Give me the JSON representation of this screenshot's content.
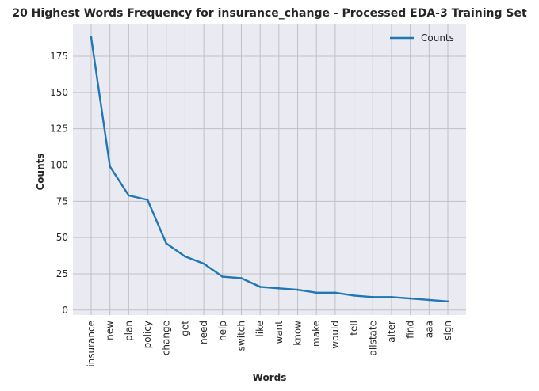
{
  "chart_data": {
    "type": "line",
    "title": "20 Highest Words Frequency for insurance_change - Processed EDA-3 Training Set",
    "xlabel": "Words",
    "ylabel": "Counts",
    "categories": [
      "insurance",
      "new",
      "plan",
      "policy",
      "change",
      "get",
      "need",
      "help",
      "switch",
      "like",
      "want",
      "know",
      "make",
      "would",
      "tell",
      "allstate",
      "alter",
      "find",
      "aaa",
      "sign"
    ],
    "series": [
      {
        "name": "Counts",
        "values": [
          188,
          99,
          79,
          76,
          46,
          37,
          32,
          23,
          22,
          16,
          15,
          14,
          12,
          12,
          10,
          9,
          9,
          8,
          7,
          6
        ]
      }
    ],
    "ylim": [
      -3.4,
      197.4
    ],
    "yticks": [
      0,
      25,
      50,
      75,
      100,
      125,
      150,
      175
    ],
    "grid": true,
    "legend_position": "top-right",
    "colors": {
      "line": "#1f77b4",
      "plot_background": "#eaeaf2",
      "grid": "#c0c0c4"
    }
  }
}
